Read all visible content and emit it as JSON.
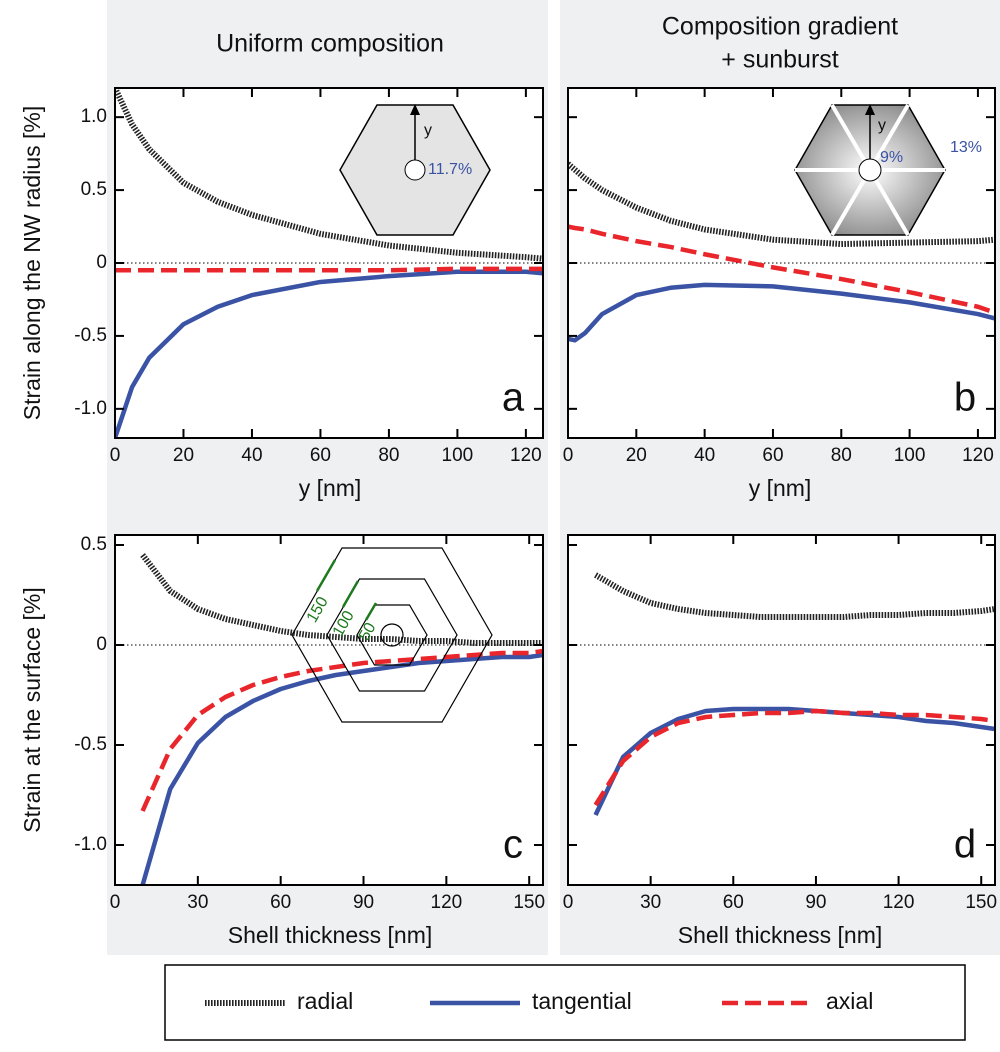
{
  "chart_data": [
    {
      "type": "line",
      "title": "Uniform composition",
      "ylabel": "Strain along the NW radius [%]",
      "xlabel": "y [nm]",
      "panel": "a",
      "x": [
        0,
        5,
        10,
        20,
        30,
        40,
        60,
        80,
        100,
        120,
        125
      ],
      "series": [
        {
          "name": "radial",
          "color": "#222222",
          "values": [
            1.2,
            0.95,
            0.78,
            0.55,
            0.42,
            0.33,
            0.2,
            0.12,
            0.07,
            0.04,
            0.03
          ]
        },
        {
          "name": "tangential",
          "color": "#3a53a4",
          "values": [
            -1.2,
            -0.85,
            -0.65,
            -0.42,
            -0.3,
            -0.22,
            -0.13,
            -0.09,
            -0.06,
            -0.06,
            -0.07
          ]
        },
        {
          "name": "axial",
          "color": "#e8262b",
          "values": [
            -0.05,
            -0.05,
            -0.05,
            -0.05,
            -0.05,
            -0.05,
            -0.05,
            -0.05,
            -0.04,
            -0.04,
            -0.04
          ]
        }
      ],
      "xlim": [
        0,
        125
      ],
      "ylim": [
        -1.2,
        1.2
      ],
      "xticks": [
        0,
        20,
        40,
        60,
        80,
        100,
        120
      ],
      "yticks": [
        {
          "value": 1,
          "label": "1.0"
        },
        0.5,
        0,
        -0.5,
        {
          "value": -1,
          "label": "-1.0"
        }
      ],
      "hline": 0,
      "annotations": [
        "y",
        "11.7%"
      ]
    },
    {
      "type": "line",
      "title": [
        "Composition gradient",
        "+ sunburst"
      ],
      "xlabel": "y [nm]",
      "panel": "b",
      "x": [
        0,
        2,
        5,
        10,
        20,
        30,
        40,
        60,
        80,
        100,
        120,
        125
      ],
      "series": [
        {
          "name": "radial",
          "color": "#222222",
          "values": [
            0.68,
            0.64,
            0.58,
            0.5,
            0.38,
            0.29,
            0.23,
            0.16,
            0.13,
            0.14,
            0.15,
            0.16
          ]
        },
        {
          "name": "tangential",
          "color": "#3a53a4",
          "values": [
            -0.52,
            -0.53,
            -0.48,
            -0.35,
            -0.22,
            -0.17,
            -0.15,
            -0.16,
            -0.21,
            -0.27,
            -0.35,
            -0.38
          ]
        },
        {
          "name": "axial",
          "color": "#e8262b",
          "values": [
            0.25,
            0.24,
            0.23,
            0.2,
            0.15,
            0.11,
            0.06,
            -0.03,
            -0.11,
            -0.2,
            -0.3,
            -0.34
          ]
        }
      ],
      "xlim": [
        0,
        125
      ],
      "ylim": [
        -1.2,
        1.2
      ],
      "xticks": [
        0,
        20,
        40,
        60,
        80,
        100,
        120
      ],
      "yticks": [
        {
          "value": 1,
          "label": "1.0"
        },
        0.5,
        0,
        -0.5,
        {
          "value": -1,
          "label": "-1.0"
        }
      ],
      "hline": 0,
      "annotations": [
        "y",
        "13%",
        "9%"
      ]
    },
    {
      "type": "line",
      "ylabel": "Strain at the surface [%]",
      "xlabel": "Shell thickness [nm]",
      "panel": "c",
      "x": [
        10,
        20,
        30,
        40,
        50,
        60,
        70,
        80,
        90,
        100,
        110,
        120,
        130,
        140,
        150,
        155
      ],
      "series": [
        {
          "name": "radial",
          "color": "#222222",
          "values": [
            0.45,
            0.27,
            0.18,
            0.13,
            0.1,
            0.07,
            0.05,
            0.04,
            0.03,
            0.03,
            0.02,
            0.02,
            0.01,
            0.01,
            0.01,
            0.01
          ]
        },
        {
          "name": "tangential",
          "color": "#3a53a4",
          "values": [
            -1.2,
            -0.72,
            -0.49,
            -0.36,
            -0.28,
            -0.22,
            -0.18,
            -0.15,
            -0.13,
            -0.11,
            -0.09,
            -0.08,
            -0.07,
            -0.06,
            -0.06,
            -0.05
          ]
        },
        {
          "name": "axial",
          "color": "#e8262b",
          "values": [
            -0.83,
            -0.52,
            -0.35,
            -0.26,
            -0.2,
            -0.16,
            -0.13,
            -0.11,
            -0.09,
            -0.08,
            -0.07,
            -0.06,
            -0.05,
            -0.04,
            -0.04,
            -0.03
          ]
        }
      ],
      "xlim": [
        0,
        155
      ],
      "ylim": [
        -1.2,
        0.55
      ],
      "xticks": [
        0,
        30,
        60,
        90,
        120,
        150
      ],
      "yticks": [
        0.5,
        0,
        -0.5,
        {
          "value": -1,
          "label": "-1.0"
        }
      ],
      "hline": 0,
      "annotations": [
        "150",
        "100",
        "50"
      ]
    },
    {
      "type": "line",
      "xlabel": "Shell thickness [nm]",
      "panel": "d",
      "x": [
        10,
        20,
        30,
        40,
        50,
        60,
        70,
        80,
        90,
        100,
        110,
        120,
        130,
        140,
        150,
        155
      ],
      "series": [
        {
          "name": "radial",
          "color": "#222222",
          "values": [
            0.35,
            0.27,
            0.21,
            0.18,
            0.16,
            0.15,
            0.14,
            0.14,
            0.14,
            0.14,
            0.15,
            0.15,
            0.16,
            0.16,
            0.17,
            0.18
          ]
        },
        {
          "name": "tangential",
          "color": "#3a53a4",
          "values": [
            -0.85,
            -0.56,
            -0.44,
            -0.37,
            -0.33,
            -0.32,
            -0.32,
            -0.32,
            -0.33,
            -0.34,
            -0.35,
            -0.36,
            -0.38,
            -0.39,
            -0.41,
            -0.42
          ]
        },
        {
          "name": "axial",
          "color": "#e8262b",
          "values": [
            -0.8,
            -0.58,
            -0.46,
            -0.39,
            -0.36,
            -0.35,
            -0.34,
            -0.34,
            -0.33,
            -0.34,
            -0.34,
            -0.35,
            -0.35,
            -0.36,
            -0.37,
            -0.38
          ]
        }
      ],
      "xlim": [
        0,
        155
      ],
      "ylim": [
        -1.2,
        0.55
      ],
      "xticks": [
        0,
        30,
        60,
        90,
        120,
        150
      ],
      "yticks": [
        0.5,
        0,
        -0.5,
        {
          "value": -1,
          "label": "-1.0"
        }
      ],
      "hline": 0
    }
  ]
}
